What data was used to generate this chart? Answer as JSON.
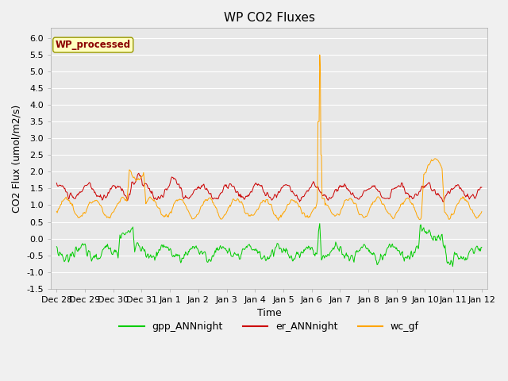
{
  "title": "WP CO2 Fluxes",
  "xlabel": "Time",
  "ylabel": "CO2 Flux (umol/m2/s)",
  "ylim": [
    -1.5,
    6.3
  ],
  "yticks": [
    -1.5,
    -1.0,
    -0.5,
    0.0,
    0.5,
    1.0,
    1.5,
    2.0,
    2.5,
    3.0,
    3.5,
    4.0,
    4.5,
    5.0,
    5.5,
    6.0
  ],
  "x_tick_labels": [
    "Dec 28",
    "Dec 29",
    "Dec 30",
    "Dec 31",
    "Jan 1",
    "Jan 2",
    "Jan 3",
    "Jan 4",
    "Jan 5",
    "Jan 6",
    "Jan 7",
    "Jan 8",
    "Jan 9",
    "Jan 10",
    "Jan 11",
    "Jan 12"
  ],
  "annotation_label": "WP_processed",
  "annotation_color": "#8B0000",
  "annotation_bg": "#FFFFC0",
  "gpp_color": "#00CC00",
  "er_color": "#CC0000",
  "wc_color": "#FFA500",
  "legend_labels": [
    "gpp_ANNnight",
    "er_ANNnight",
    "wc_gf"
  ],
  "plot_bg_color": "#E8E8E8",
  "fig_bg_color": "#F0F0F0",
  "grid_color": "#FFFFFF",
  "title_fontsize": 11,
  "axis_fontsize": 9,
  "tick_fontsize": 8,
  "legend_fontsize": 9
}
